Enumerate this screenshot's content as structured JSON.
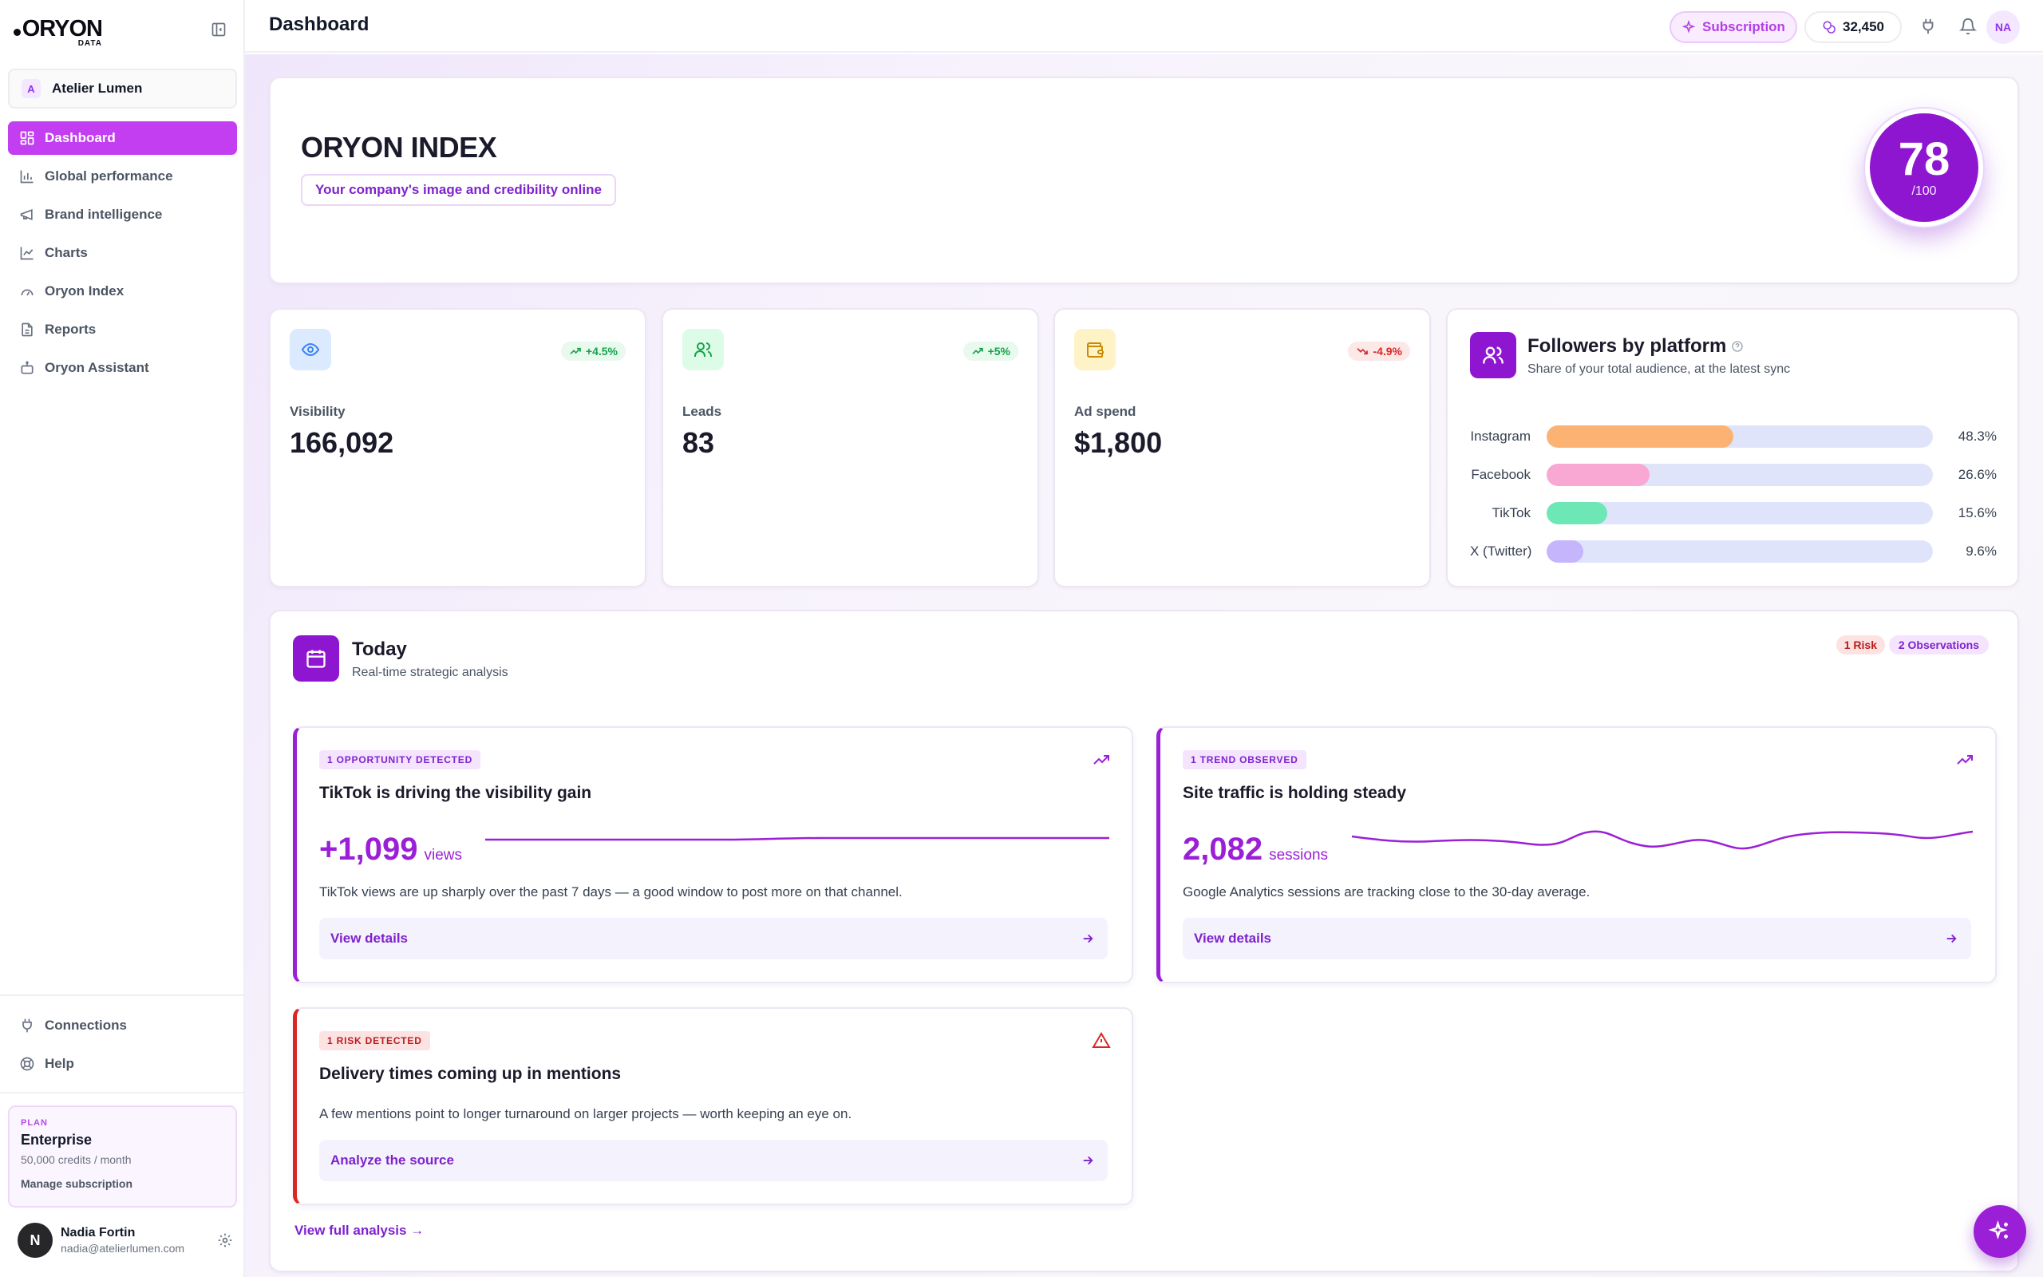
{
  "brand": {
    "logo_word": "ORYON",
    "logo_sub": "DATA"
  },
  "workspace": {
    "avatar": "A",
    "name": "Atelier Lumen"
  },
  "sidebar": {
    "items": [
      {
        "label": "Dashboard",
        "icon": "grid-icon",
        "active": true
      },
      {
        "label": "Global performance",
        "icon": "bar-chart-icon"
      },
      {
        "label": "Brand intelligence",
        "icon": "megaphone-icon"
      },
      {
        "label": "Charts",
        "icon": "line-chart-icon"
      },
      {
        "label": "Oryon Index",
        "icon": "gauge-icon"
      },
      {
        "label": "Reports",
        "icon": "document-icon"
      },
      {
        "label": "Oryon Assistant",
        "icon": "bot-icon"
      }
    ],
    "bottom": [
      {
        "label": "Connections",
        "icon": "plug-icon"
      },
      {
        "label": "Help",
        "icon": "lifebuoy-icon"
      }
    ],
    "plan": {
      "kicker": "PLAN",
      "name": "Enterprise",
      "credits": "50,000 credits / month",
      "manage": "Manage subscription"
    },
    "user": {
      "avatar": "N",
      "name": "Nadia Fortin",
      "email": "nadia@atelierlumen.com"
    }
  },
  "header": {
    "title": "Dashboard",
    "subscription": "Subscription",
    "credits": "32,450",
    "avatar": "NA"
  },
  "hero": {
    "title": "ORYON INDEX",
    "tagline": "Your company's image and credibility online",
    "score": "78",
    "score_max": "/100"
  },
  "stats": [
    {
      "label": "Visibility",
      "value": "166,092",
      "change": "+4.5%",
      "trend": "up",
      "color": "#3b82f6"
    },
    {
      "label": "Leads",
      "value": "83",
      "change": "+5%",
      "trend": "up",
      "color": "#22c55e"
    },
    {
      "label": "Ad spend",
      "value": "$1,800",
      "change": "-4.9%",
      "trend": "down",
      "color": "#eab308"
    }
  ],
  "followers": {
    "title": "Followers by platform",
    "subtitle": "Share of your total audience, at the latest sync",
    "rows": [
      {
        "name": "Instagram",
        "pct": "48.3%",
        "value": 48.3,
        "color": "#fbb273"
      },
      {
        "name": "Facebook",
        "pct": "26.6%",
        "value": 26.6,
        "color": "#f9a8d4"
      },
      {
        "name": "TikTok",
        "pct": "15.6%",
        "value": 15.6,
        "color": "#6ee7b7"
      },
      {
        "name": "X (Twitter)",
        "pct": "9.6%",
        "value": 9.6,
        "color": "#c4b5fd"
      }
    ]
  },
  "today": {
    "title": "Today",
    "subtitle": "Real-time strategic analysis",
    "risk_badge": "1 Risk",
    "obs_badge": "2 Observations",
    "view_all": "View full analysis →",
    "insights": [
      {
        "kicker": "1 OPPORTUNITY DETECTED",
        "title": "TikTok is driving the visibility gain",
        "value": "+1,099",
        "unit": "views",
        "desc": "TikTok views are up sharply over the past 7 days — a good window to post more on that channel.",
        "action": "View details"
      },
      {
        "kicker": "1 TREND OBSERVED",
        "title": "Site traffic is holding steady",
        "value": "2,082",
        "unit": "sessions",
        "desc": "Google Analytics sessions are tracking close to the 30-day average.",
        "action": "View details"
      },
      {
        "kicker": "1 RISK DETECTED",
        "title": "Delivery times coming up in mentions",
        "desc": "A few mentions point to longer turnaround on larger projects — worth keeping an eye on.",
        "action": "Analyze the source"
      }
    ]
  },
  "colors": {
    "accent": "#9b1fd6",
    "nav_active": "#c23ef0",
    "risk": "#dc2626"
  }
}
